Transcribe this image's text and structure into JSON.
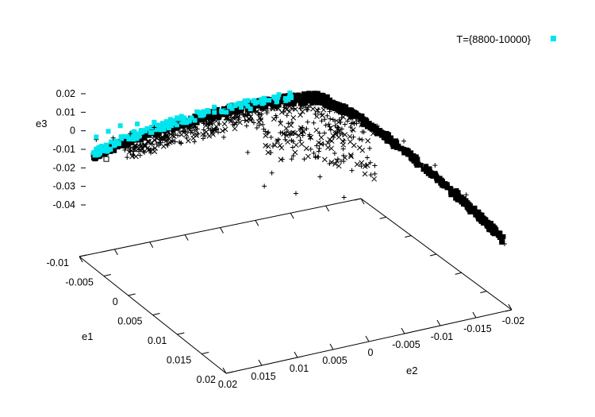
{
  "chart_data": {
    "type": "scatter",
    "projection": "3d",
    "title": "",
    "xlabel": "e1",
    "ylabel": "e2",
    "zlabel": "e3",
    "xlim": [
      -0.01,
      0.02
    ],
    "ylim": [
      -0.02,
      0.02
    ],
    "zlim": [
      -0.04,
      0.02
    ],
    "x_ticks": [
      "-0.01",
      "-0.005",
      "0",
      "0.005",
      "0.01",
      "0.015",
      "0.02"
    ],
    "y_ticks": [
      "0.02",
      "0.015",
      "0.01",
      "0.005",
      "0",
      "-0.005",
      "-0.01",
      "-0.015",
      "-0.02"
    ],
    "z_ticks": [
      "0.02",
      "0.01",
      "0",
      "-0.01",
      "-0.02",
      "-0.03",
      "-0.04"
    ],
    "grid": false,
    "legend": {
      "placement": "top-right",
      "entries": [
        {
          "label": "T={8800-10000}",
          "color": "#00e5ee",
          "marker": "filled-square"
        }
      ]
    },
    "series": [
      {
        "color": "#000000",
        "marker": "mixed (+, x, *, square)",
        "points": [
          [
            -0.008,
            0.019,
            -0.013
          ],
          [
            -0.006,
            0.018,
            -0.01
          ],
          [
            -0.004,
            0.017,
            -0.006
          ],
          [
            -0.002,
            0.015,
            -0.002
          ],
          [
            0.0,
            0.013,
            0.002
          ],
          [
            0.002,
            0.011,
            0.006
          ],
          [
            0.004,
            0.009,
            0.01
          ],
          [
            0.006,
            0.007,
            0.014
          ],
          [
            0.008,
            0.004,
            0.016
          ],
          [
            0.01,
            0.002,
            0.017
          ],
          [
            0.011,
            0.0,
            0.017
          ],
          [
            0.012,
            -0.003,
            0.013
          ],
          [
            0.013,
            -0.006,
            0.008
          ],
          [
            0.014,
            -0.009,
            0.002
          ],
          [
            0.016,
            -0.012,
            -0.006
          ],
          [
            0.018,
            -0.015,
            -0.016
          ],
          [
            0.019,
            -0.017,
            -0.025
          ],
          [
            0.02,
            -0.019,
            -0.034
          ],
          [
            0.004,
            0.006,
            -0.008
          ],
          [
            0.006,
            0.004,
            -0.014
          ],
          [
            0.008,
            0.002,
            -0.02
          ],
          [
            0.01,
            0.0,
            -0.012
          ],
          [
            0.012,
            -0.002,
            -0.018
          ],
          [
            0.002,
            0.008,
            -0.004
          ],
          [
            0.009,
            -0.004,
            -0.01
          ],
          [
            0.003,
            0.003,
            -0.024
          ]
        ]
      },
      {
        "name": "T={8800-10000}",
        "color": "#00e5ee",
        "marker": "filled-square",
        "points": [
          [
            -0.008,
            0.019,
            -0.012
          ],
          [
            -0.007,
            0.018,
            -0.009
          ],
          [
            -0.006,
            0.017,
            -0.006
          ],
          [
            -0.004,
            0.016,
            -0.003
          ],
          [
            -0.002,
            0.015,
            0.0
          ],
          [
            0.0,
            0.013,
            0.003
          ],
          [
            0.002,
            0.011,
            0.006
          ],
          [
            0.004,
            0.009,
            0.009
          ],
          [
            0.006,
            0.007,
            0.012
          ]
        ]
      }
    ]
  }
}
